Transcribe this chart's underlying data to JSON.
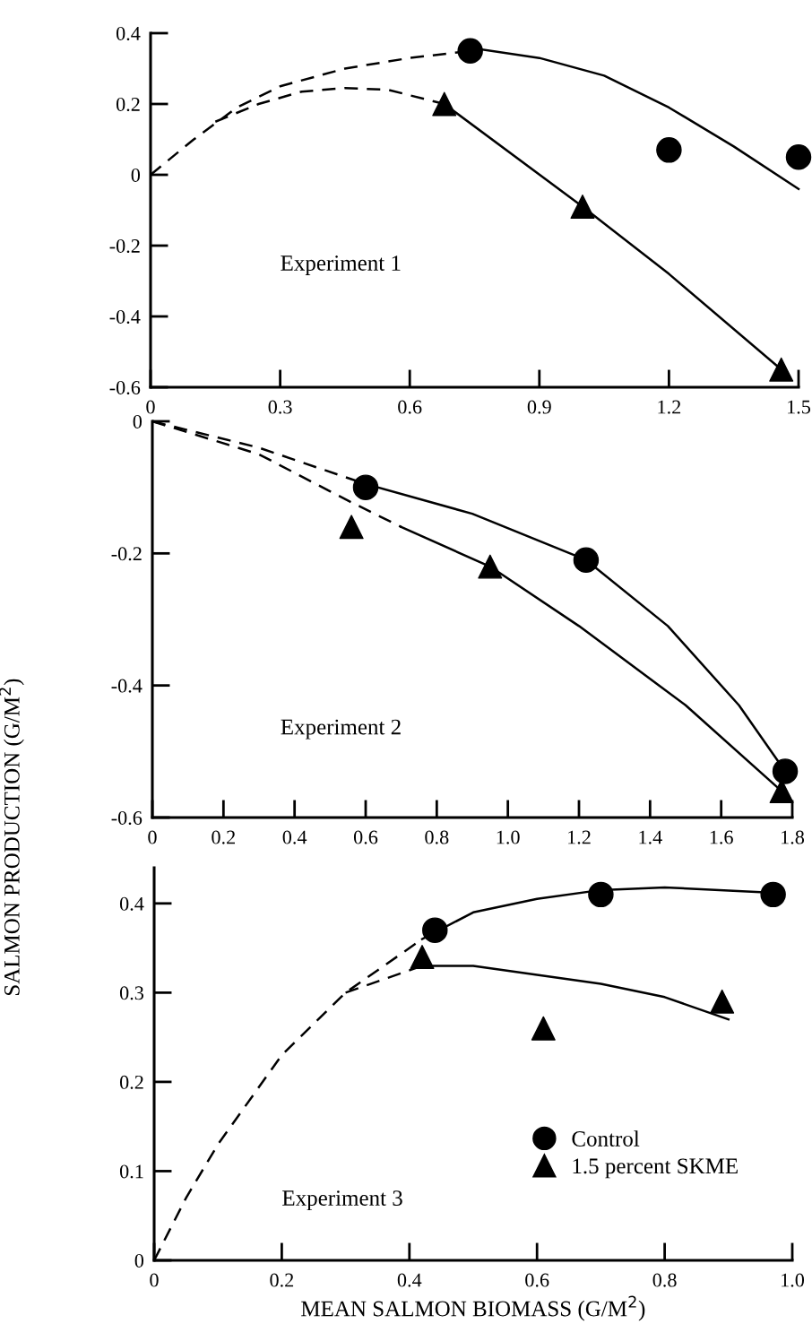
{
  "chart_data": [
    {
      "type": "scatter",
      "xlim": [
        0,
        1.5
      ],
      "xticks": [
        0,
        0.3,
        0.6,
        0.9,
        1.2,
        1.5
      ],
      "ylim": [
        -0.6,
        0.4
      ],
      "yticks": [
        -0.6,
        -0.4,
        -0.2,
        0,
        0.2,
        0.4
      ],
      "grid": false,
      "annotations": [
        "Experiment 1"
      ],
      "series": [
        {
          "type": "scatter",
          "marker": "circle",
          "color": "#000000",
          "x": [
            0.74,
            1.2,
            1.5
          ],
          "values": [
            0.35,
            0.07,
            0.05
          ]
        },
        {
          "type": "scatter",
          "marker": "triangle",
          "color": "#000000",
          "x": [
            0.68,
            1.0,
            1.46
          ],
          "values": [
            0.2,
            -0.09,
            -0.55
          ]
        },
        {
          "type": "line",
          "line_style": "dashed",
          "color": "#000000",
          "x": [
            0,
            0.1,
            0.2,
            0.3,
            0.45,
            0.6,
            0.74
          ],
          "values": [
            0,
            0.1,
            0.19,
            0.25,
            0.3,
            0.33,
            0.35
          ]
        },
        {
          "type": "line",
          "line_style": "solid",
          "color": "#000000",
          "x": [
            0.76,
            0.9,
            1.05,
            1.2,
            1.35,
            1.5
          ],
          "values": [
            0.355,
            0.33,
            0.28,
            0.19,
            0.08,
            -0.04
          ]
        },
        {
          "type": "line",
          "line_style": "dashed",
          "color": "#000000",
          "x": [
            0.15,
            0.25,
            0.35,
            0.45,
            0.55,
            0.68
          ],
          "values": [
            0.15,
            0.2,
            0.235,
            0.245,
            0.24,
            0.2
          ]
        },
        {
          "type": "line",
          "line_style": "solid",
          "color": "#000000",
          "x": [
            0.68,
            1.0,
            1.2,
            1.46
          ],
          "values": [
            0.2,
            -0.09,
            -0.28,
            -0.55
          ]
        }
      ]
    },
    {
      "type": "scatter",
      "xlim": [
        0,
        1.8
      ],
      "xticks": [
        0,
        0.2,
        0.4,
        0.6,
        0.8,
        {
          "value": 1.0,
          "label": "1.0"
        },
        1.2,
        1.4,
        1.6,
        1.8
      ],
      "ylim": [
        -0.6,
        0
      ],
      "yticks": [
        -0.6,
        -0.4,
        -0.2,
        0
      ],
      "grid": false,
      "ylabel": "SALMON PRODUCTION (G/M$^{2}$)",
      "annotations": [
        "Experiment 2"
      ],
      "series": [
        {
          "type": "scatter",
          "marker": "circle",
          "color": "#000000",
          "x": [
            0.6,
            1.22,
            1.78
          ],
          "values": [
            -0.1,
            -0.21,
            -0.53
          ]
        },
        {
          "type": "scatter",
          "marker": "triangle",
          "color": "#000000",
          "x": [
            0.56,
            0.95,
            1.77
          ],
          "values": [
            -0.16,
            -0.22,
            -0.56
          ]
        },
        {
          "type": "line",
          "line_style": "dashed",
          "color": "#000000",
          "x": [
            0,
            0.3,
            0.6
          ],
          "values": [
            0,
            -0.04,
            -0.095
          ]
        },
        {
          "type": "line",
          "line_style": "solid",
          "color": "#000000",
          "x": [
            0.6,
            0.9,
            1.22,
            1.45,
            1.65,
            1.78
          ],
          "values": [
            -0.095,
            -0.14,
            -0.21,
            -0.31,
            -0.43,
            -0.53
          ]
        },
        {
          "type": "line",
          "line_style": "dashed",
          "color": "#000000",
          "x": [
            0,
            0.3,
            0.55,
            0.7
          ],
          "values": [
            0,
            -0.05,
            -0.12,
            -0.16
          ]
        },
        {
          "type": "line",
          "line_style": "solid",
          "color": "#000000",
          "x": [
            0.7,
            0.95,
            1.2,
            1.5,
            1.77
          ],
          "values": [
            -0.16,
            -0.22,
            -0.31,
            -0.43,
            -0.56
          ]
        }
      ]
    },
    {
      "type": "scatter",
      "xlim": [
        0,
        1.0
      ],
      "xticks": [
        0,
        0.2,
        0.4,
        0.6,
        0.8,
        {
          "value": 1.0,
          "label": "1.0"
        }
      ],
      "ylim": [
        0,
        0.44
      ],
      "yticks": [
        0,
        0.1,
        0.2,
        0.3,
        0.4
      ],
      "grid": false,
      "xlabel": "MEAN SALMON BIOMASS (G/M$^{2}$)",
      "legend": "center right",
      "annotations": [
        "Experiment 3"
      ],
      "series": [
        {
          "type": "scatter",
          "name": "Control",
          "marker": "circle",
          "color": "#000000",
          "x": [
            0.44,
            0.7,
            0.97
          ],
          "values": [
            0.37,
            0.41,
            0.41
          ]
        },
        {
          "type": "scatter",
          "name": "1.5 percent SKME",
          "marker": "triangle",
          "color": "#000000",
          "x": [
            0.42,
            0.61,
            0.89
          ],
          "values": [
            0.34,
            0.26,
            0.29
          ]
        },
        {
          "type": "line",
          "line_style": "dashed",
          "color": "#000000",
          "x": [
            0,
            0.05,
            0.1,
            0.2,
            0.3,
            0.42
          ],
          "values": [
            0,
            0.07,
            0.13,
            0.23,
            0.3,
            0.36
          ]
        },
        {
          "type": "line",
          "line_style": "solid",
          "color": "#000000",
          "x": [
            0.42,
            0.5,
            0.6,
            0.7,
            0.8,
            0.97
          ],
          "values": [
            0.36,
            0.39,
            0.405,
            0.415,
            0.418,
            0.412
          ]
        },
        {
          "type": "line",
          "line_style": "dashed",
          "color": "#000000",
          "x": [
            0.3,
            0.42
          ],
          "values": [
            0.3,
            0.33
          ]
        },
        {
          "type": "line",
          "line_style": "solid",
          "color": "#000000",
          "x": [
            0.42,
            0.5,
            0.6,
            0.7,
            0.8,
            0.9
          ],
          "values": [
            0.33,
            0.33,
            0.32,
            0.31,
            0.295,
            0.27
          ]
        }
      ]
    }
  ]
}
